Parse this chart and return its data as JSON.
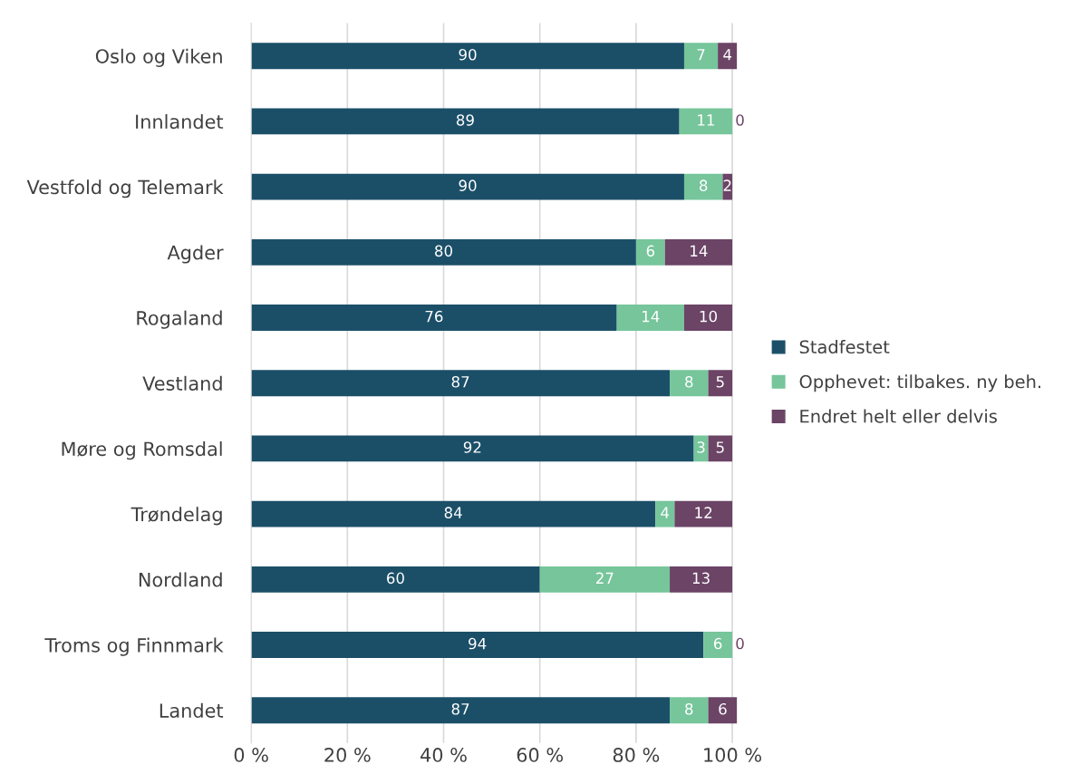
{
  "chart_data": {
    "type": "bar",
    "orientation": "horizontal",
    "stacked": true,
    "categories": [
      "Oslo og Viken",
      "Innlandet",
      "Vestfold og Telemark",
      "Agder",
      "Rogaland",
      "Vestland",
      "Møre og Romsdal",
      "Trøndelag",
      "Nordland",
      "Troms og Finnmark",
      "Landet"
    ],
    "series": [
      {
        "name": "Stadfestet",
        "color": "#1b4f68",
        "values": [
          90,
          89,
          90,
          80,
          76,
          87,
          92,
          84,
          60,
          94,
          87
        ]
      },
      {
        "name": "Opphevet: tilbakes. ny beh.",
        "color": "#76c59b",
        "values": [
          7,
          11,
          8,
          6,
          14,
          8,
          3,
          4,
          27,
          6,
          8
        ]
      },
      {
        "name": "Endret helt eller delvis",
        "color": "#6b4466",
        "values": [
          4,
          0,
          2,
          14,
          10,
          5,
          5,
          12,
          13,
          0,
          6
        ]
      }
    ],
    "data_labels": true,
    "xlim": [
      0,
      101
    ],
    "xticks": [
      {
        "value": 0,
        "label": "0 %"
      },
      {
        "value": 20,
        "label": "20 %"
      },
      {
        "value": 40,
        "label": "40 %"
      },
      {
        "value": 60,
        "label": "60 %"
      },
      {
        "value": 80,
        "label": "80 %"
      },
      {
        "value": 100,
        "label": "100 %"
      }
    ],
    "grid": "x",
    "legend": "right"
  }
}
